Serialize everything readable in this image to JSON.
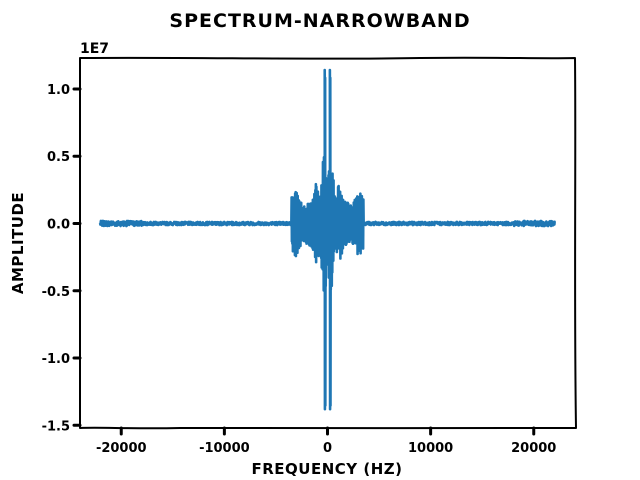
{
  "chart_data": {
    "type": "line",
    "title": "SPECTRUM-NARROWBAND",
    "xlabel": "FREQUENCY (HZ)",
    "ylabel": "AMPLITUDE",
    "y_offset_label": "1E7",
    "xlim": [
      -24000,
      24000
    ],
    "ylim": [
      -1.52,
      1.23
    ],
    "x_ticks": [
      -20000,
      -10000,
      0,
      10000,
      20000
    ],
    "x_tick_labels": [
      "-20000",
      "-10000",
      "0",
      "10000",
      "20000"
    ],
    "y_ticks": [
      -1.5,
      -1.0,
      -0.5,
      0.0,
      0.5,
      1.0
    ],
    "y_tick_labels": [
      "-1.5",
      "-1.0",
      "-0.5",
      "0.0",
      "0.5",
      "1.0"
    ],
    "grid": false,
    "series": [
      {
        "color": "#1f77b4",
        "x_range": [
          -22050,
          22050
        ],
        "baseline": 0.0,
        "noise_amplitude_outside": 0.012,
        "envelope": [
          {
            "x": -3500,
            "amp": 0.2
          },
          {
            "x": -3000,
            "amp": 0.26
          },
          {
            "x": -2800,
            "amp": 0.2
          },
          {
            "x": -2400,
            "amp": 0.14
          },
          {
            "x": -1600,
            "amp": 0.17
          },
          {
            "x": -1100,
            "amp": 0.3
          },
          {
            "x": -700,
            "amp": 0.22
          },
          {
            "x": -300,
            "amp": 0.6
          },
          {
            "x": 0,
            "amp": 0.3
          },
          {
            "x": 300,
            "amp": 0.6
          },
          {
            "x": 700,
            "amp": 0.22
          },
          {
            "x": 1100,
            "amp": 0.3
          },
          {
            "x": 1600,
            "amp": 0.17
          },
          {
            "x": 2400,
            "amp": 0.14
          },
          {
            "x": 2800,
            "amp": 0.2
          },
          {
            "x": 3000,
            "amp": 0.26
          },
          {
            "x": 3500,
            "amp": 0.18
          }
        ],
        "peaks": [
          {
            "x": -250,
            "max": 1.14,
            "min": -1.38
          },
          {
            "x": 250,
            "max": 1.14,
            "min": -1.38
          }
        ]
      }
    ]
  }
}
